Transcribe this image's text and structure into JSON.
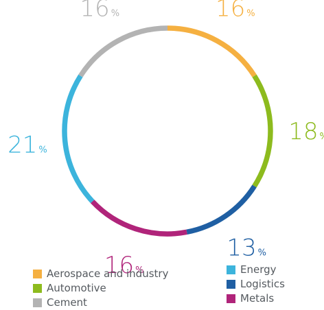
{
  "chart_data": {
    "type": "pie",
    "style": "donut",
    "title": "",
    "segments": [
      {
        "label": "Aerospace and industry",
        "value": 16,
        "color": "#f5b041"
      },
      {
        "label": "Automotive",
        "value": 18,
        "color": "#8dbb1e"
      },
      {
        "label": "Logistics",
        "value": 13,
        "color": "#1f5fa3"
      },
      {
        "label": "Metals",
        "value": 16,
        "color": "#b0247a"
      },
      {
        "label": "Energy",
        "value": 21,
        "color": "#3cb4dc"
      },
      {
        "label": "Cement",
        "value": 16,
        "color": "#b3b3b3"
      }
    ],
    "value_suffix": "%",
    "legend": {
      "placement": "bottom",
      "left_column": [
        "Aerospace and industry",
        "Automotive",
        "Cement"
      ],
      "right_column": [
        "Energy",
        "Logistics",
        "Metals"
      ]
    }
  }
}
